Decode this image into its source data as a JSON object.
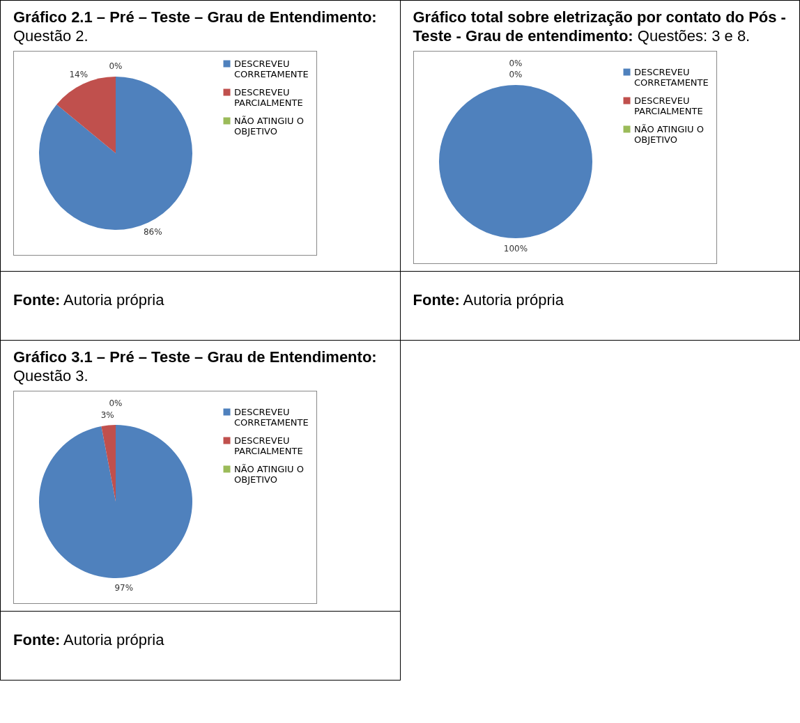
{
  "chart_data": [
    {
      "type": "pie",
      "title": "Gráfico 2.1 – Pré – Teste – Grau de Entendimento: Questão 2.",
      "categories": [
        "DESCREVEU CORRETAMENTE",
        "DESCREVEU PARCIALMENTE",
        "NÃO ATINGIU  O OBJETIVO"
      ],
      "values": [
        86,
        14,
        0
      ],
      "value_labels": [
        "86%",
        "14%",
        "0%"
      ],
      "colors": [
        "#4f81bd",
        "#c0504d",
        "#9bbb59"
      ],
      "legend": "right",
      "annotations": [
        "Fonte: Autoria própria"
      ]
    },
    {
      "type": "pie",
      "title": "Gráfico total sobre eletrização por contato do Pós - Teste - Grau de entendimento: Questões: 3 e 8.",
      "categories": [
        "DESCREVEU CORRETAMENTE",
        "DESCREVEU PARCIALMENTE",
        "NÃO ATINGIU  O OBJETIVO"
      ],
      "values": [
        100,
        0,
        0
      ],
      "value_labels": [
        "100%",
        "0%",
        "0%"
      ],
      "colors": [
        "#4f81bd",
        "#c0504d",
        "#9bbb59"
      ],
      "legend": "right",
      "annotations": [
        "Fonte: Autoria própria"
      ]
    },
    {
      "type": "pie",
      "title": "Gráfico 3.1 – Pré – Teste – Grau de Entendimento: Questão 3.",
      "categories": [
        "DESCREVEU CORRETAMENTE",
        "DESCREVEU PARCIALMENTE",
        "NÃO ATINGIU  O OBJETIVO"
      ],
      "values": [
        97,
        3,
        0
      ],
      "value_labels": [
        "97%",
        "3%",
        "0%"
      ],
      "colors": [
        "#4f81bd",
        "#c0504d",
        "#9bbb59"
      ],
      "legend": "right",
      "annotations": [
        "Fonte: Autoria própria"
      ]
    }
  ]
}
